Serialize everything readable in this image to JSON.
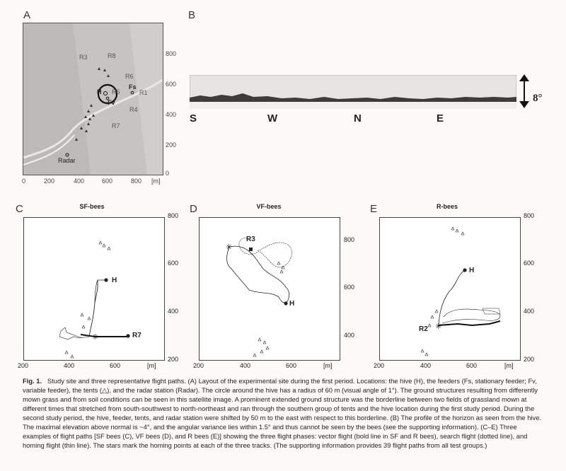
{
  "panels": {
    "a": {
      "label": "A",
      "y_ticks": [
        "800",
        "600",
        "400",
        "200",
        "0"
      ],
      "x_ticks": [
        "0",
        "200",
        "400",
        "600",
        "800"
      ],
      "x_unit": "[m]",
      "sites": [
        "R3",
        "R8",
        "R6",
        "R5",
        "Fs",
        "R1",
        "R4",
        "R7",
        "Fv",
        "H",
        "Radar"
      ]
    },
    "b": {
      "label": "B",
      "elevation": "8°",
      "directions": [
        "S",
        "W",
        "N",
        "E"
      ]
    },
    "c": {
      "label": "C",
      "title": "SF-bees",
      "y_ticks": [
        "800",
        "600",
        "400",
        "200"
      ],
      "x_ticks": [
        "200",
        "400",
        "600"
      ],
      "x_unit": "[m]",
      "labels": [
        "H",
        "R7"
      ]
    },
    "d": {
      "label": "D",
      "title": "VF-bees",
      "y_ticks": [
        "800",
        "600",
        "400"
      ],
      "x_ticks": [
        "200",
        "400",
        "600"
      ],
      "x_unit": "[m]",
      "labels": [
        "R3",
        "H"
      ]
    },
    "e": {
      "label": "E",
      "title": "R-bees",
      "y_ticks": [
        "800",
        "600",
        "400",
        "200"
      ],
      "x_ticks": [
        "200",
        "400",
        "600"
      ],
      "x_unit": "[m]",
      "labels": [
        "H",
        "R2"
      ]
    }
  },
  "caption": {
    "fig": "Fig. 1.",
    "text": "Study site and three representative flight paths. (A) Layout of the experimental site during the first period. Locations: the hive (H), the feeders (Fs, stationary feeder; Fv, variable feeder), the tents (△), and the radar station (Radar). The circle around the hive has a radius of 60 m (visual angle of 1°). The ground structures resulting from differently mown grass and from soil conditions can be seen in this satellite image. A prominent extended ground structure was the borderline between two fields of grassland mown at different times that stretched from south-southwest to north-northeast and ran through the southern group of tents and the hive location during the first study period. During the second study period, the hive, feeder, tents, and radar station were shifted by 50 m to the east with respect to this borderline. (B) The profile of the horizon as seen from the hive. The maximal elevation above normal is ~4°, and the angular variance lies within 1.5° and thus cannot be seen by the bees (see the supporting information). (C–E) Three examples of flight paths [SF bees (C), VF bees (D), and R bees (E)] showing the three flight phases: vector flight (bold line in SF and R bees), search flight (dotted line), and homing flight (thin line). The stars mark the homing points at each of the three tracks. (The supporting information provides 39 flight paths from all test groups.)"
  }
}
